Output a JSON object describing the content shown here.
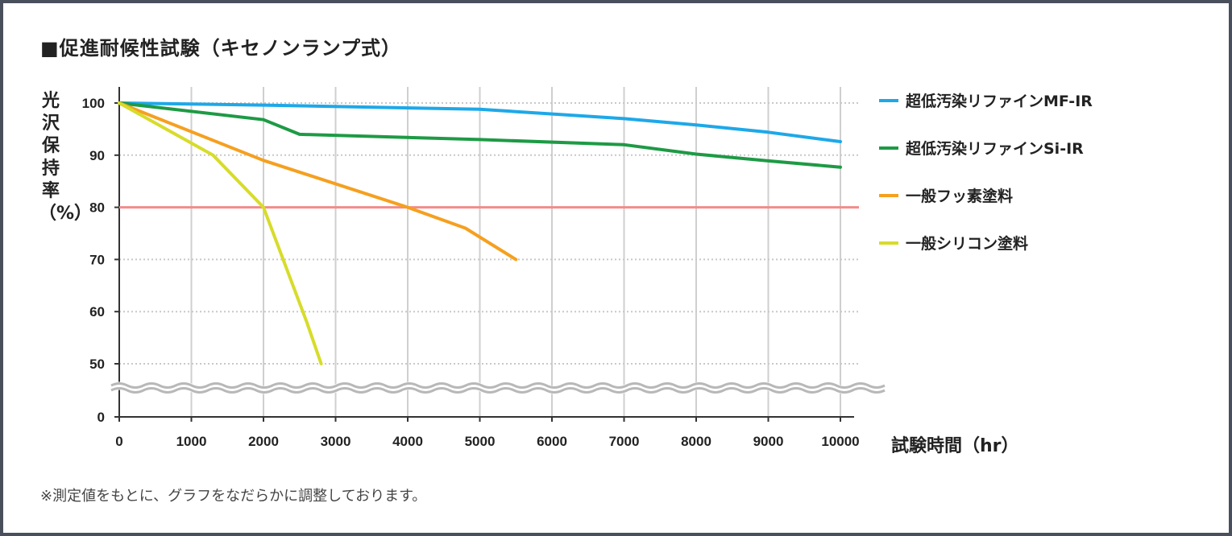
{
  "chart_data": {
    "type": "line",
    "title": "■促進耐候性試験（キセノンランプ式）",
    "xlabel": "試験時間（hr）",
    "ylabel": "光沢保持率（%）",
    "note": "※測定値をもとに、グラフをなだらかに調整しております。",
    "xlim": [
      0,
      10000
    ],
    "x_ticks": [
      0,
      1000,
      2000,
      3000,
      4000,
      5000,
      6000,
      7000,
      8000,
      9000,
      10000
    ],
    "y_ticks": [
      0,
      50,
      60,
      70,
      80,
      90,
      100
    ],
    "axis_break": "between 0 and 50",
    "grid": true,
    "reference_line": {
      "y": 80,
      "color": "#f28b8b"
    },
    "legend_position": "right",
    "series": [
      {
        "name": "超低汚染リファインMF-IR",
        "color": "#1ea8e8",
        "points": [
          [
            0,
            100
          ],
          [
            2000,
            99.6
          ],
          [
            5000,
            98.8
          ],
          [
            7000,
            97
          ],
          [
            8000,
            95.8
          ],
          [
            9000,
            94.4
          ],
          [
            10000,
            92.6
          ]
        ]
      },
      {
        "name": "超低汚染リファインSi-IR",
        "color": "#1e9a45",
        "points": [
          [
            0,
            100
          ],
          [
            2000,
            96.8
          ],
          [
            2500,
            94
          ],
          [
            5000,
            93
          ],
          [
            7000,
            92
          ],
          [
            8000,
            90.2
          ],
          [
            9000,
            88.9
          ],
          [
            10000,
            87.7
          ]
        ]
      },
      {
        "name": "一般フッ素塗料",
        "color": "#f5a020",
        "points": [
          [
            0,
            100
          ],
          [
            2000,
            89
          ],
          [
            4000,
            80
          ],
          [
            4800,
            76
          ],
          [
            5500,
            70
          ]
        ]
      },
      {
        "name": "一般シリコン塗料",
        "color": "#d7dc2a",
        "points": [
          [
            0,
            100
          ],
          [
            1300,
            90
          ],
          [
            2000,
            80
          ],
          [
            2600,
            58
          ],
          [
            2800,
            50
          ]
        ]
      }
    ]
  }
}
